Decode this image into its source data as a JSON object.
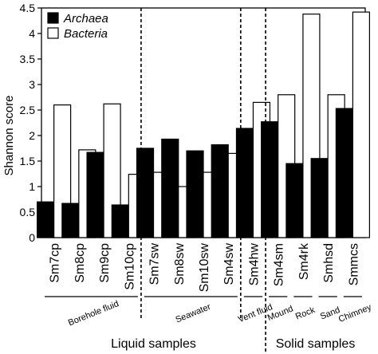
{
  "chart_data": {
    "type": "bar",
    "title": "",
    "xlabel": "",
    "ylabel": "Shannon score",
    "ylim": [
      0,
      4.5
    ],
    "yticks": [
      0,
      0.5,
      1,
      1.5,
      2,
      2.5,
      3,
      3.5,
      4,
      4.5
    ],
    "grid": false,
    "legend_position": "top-left",
    "categories": [
      "Sm7cp",
      "Sm8cp",
      "Sm9cp",
      "Sm10cp",
      "Sm7sw",
      "Sm8sw",
      "Sm10sw",
      "Sm4sw",
      "Sm4hw",
      "Sm4sm",
      "Sm4rk",
      "Smhsd",
      "Smmcs"
    ],
    "series": [
      {
        "name": "Archaea",
        "color": "#000000",
        "values": [
          0.7,
          0.67,
          1.67,
          0.64,
          1.75,
          1.93,
          1.7,
          1.82,
          2.14,
          2.27,
          1.45,
          1.55,
          2.53
        ]
      },
      {
        "name": "Bacteria",
        "color": "#ffffff",
        "values": [
          2.6,
          1.72,
          2.62,
          1.24,
          1.28,
          1.0,
          1.28,
          1.65,
          2.65,
          2.8,
          4.38,
          2.8,
          4.42
        ]
      }
    ],
    "groups": [
      {
        "label": "Borehole fluid",
        "categories": [
          "Sm7cp",
          "Sm8cp",
          "Sm9cp",
          "Sm10cp"
        ]
      },
      {
        "label": "Seawater",
        "categories": [
          "Sm7sw",
          "Sm8sw",
          "Sm10sw",
          "Sm4sw"
        ]
      },
      {
        "label": "Vent fluid",
        "categories": [
          "Sm4hw"
        ]
      },
      {
        "label": "Mound",
        "categories": [
          "Sm4sm"
        ]
      },
      {
        "label": "Rock",
        "categories": [
          "Sm4rk"
        ]
      },
      {
        "label": "Sand",
        "categories": [
          "Smhsd"
        ]
      },
      {
        "label": "Chimney",
        "categories": [
          "Smmcs"
        ]
      }
    ],
    "super_groups": [
      {
        "label": "Liquid samples",
        "categories": [
          "Sm7cp",
          "Sm8cp",
          "Sm9cp",
          "Sm10cp",
          "Sm7sw",
          "Sm8sw",
          "Sm10sw",
          "Sm4sw",
          "Sm4hw"
        ]
      },
      {
        "label": "Solid samples",
        "categories": [
          "Sm4sm",
          "Sm4rk",
          "Smhsd",
          "Smmcs"
        ]
      }
    ]
  }
}
